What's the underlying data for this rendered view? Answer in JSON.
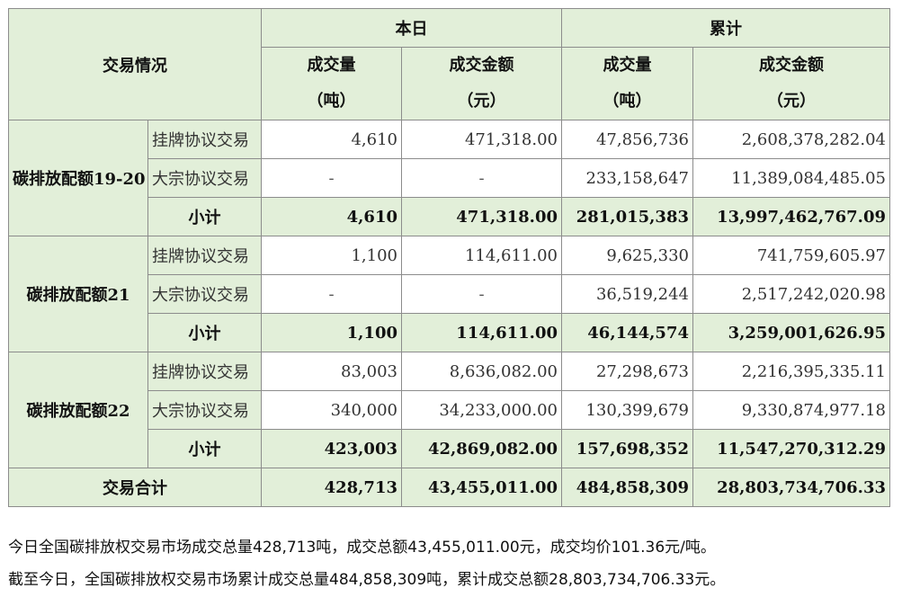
{
  "header": {
    "corner_label": "交易情况",
    "today_label": "本日",
    "cumulative_label": "累计",
    "volume_label": "成交量",
    "volume_unit": "（吨）",
    "amount_label": "成交金额",
    "amount_unit": "（元）"
  },
  "groups": [
    {
      "name": "碳排放配额19-20",
      "rows": [
        {
          "type": "挂牌协议交易",
          "today_volume": "4,610",
          "today_amount": "471,318.00",
          "cum_volume": "47,856,736",
          "cum_amount": "2,608,378,282.04"
        },
        {
          "type": "大宗协议交易",
          "today_volume": "-",
          "today_amount": "-",
          "cum_volume": "233,158,647",
          "cum_amount": "11,389,084,485.05"
        },
        {
          "type": "小计",
          "today_volume": "4,610",
          "today_amount": "471,318.00",
          "cum_volume": "281,015,383",
          "cum_amount": "13,997,462,767.09"
        }
      ]
    },
    {
      "name": "碳排放配额21",
      "rows": [
        {
          "type": "挂牌协议交易",
          "today_volume": "1,100",
          "today_amount": "114,611.00",
          "cum_volume": "9,625,330",
          "cum_amount": "741,759,605.97"
        },
        {
          "type": "大宗协议交易",
          "today_volume": "-",
          "today_amount": "-",
          "cum_volume": "36,519,244",
          "cum_amount": "2,517,242,020.98"
        },
        {
          "type": "小计",
          "today_volume": "1,100",
          "today_amount": "114,611.00",
          "cum_volume": "46,144,574",
          "cum_amount": "3,259,001,626.95"
        }
      ]
    },
    {
      "name": "碳排放配额22",
      "rows": [
        {
          "type": "挂牌协议交易",
          "today_volume": "83,003",
          "today_amount": "8,636,082.00",
          "cum_volume": "27,298,673",
          "cum_amount": "2,216,395,335.11"
        },
        {
          "type": "大宗协议交易",
          "today_volume": "340,000",
          "today_amount": "34,233,000.00",
          "cum_volume": "130,399,679",
          "cum_amount": "9,330,874,977.18"
        },
        {
          "type": "小计",
          "today_volume": "423,003",
          "today_amount": "42,869,082.00",
          "cum_volume": "157,698,352",
          "cum_amount": "11,547,270,312.29"
        }
      ]
    }
  ],
  "total": {
    "label": "交易合计",
    "today_volume": "428,713",
    "today_amount": "43,455,011.00",
    "cum_volume": "484,858,309",
    "cum_amount": "28,803,734,706.33"
  },
  "summary": {
    "line1": "今日全国碳排放权交易市场成交总量428,713吨，成交总额43,455,011.00元，成交均价101.36元/吨。",
    "line2": "截至今日，全国碳排放权交易市场累计成交总量484,858,309吨，累计成交总额28,803,734,706.33元。"
  },
  "colors": {
    "header_bg": "#e2efd9",
    "border": "#8c8c8c"
  }
}
